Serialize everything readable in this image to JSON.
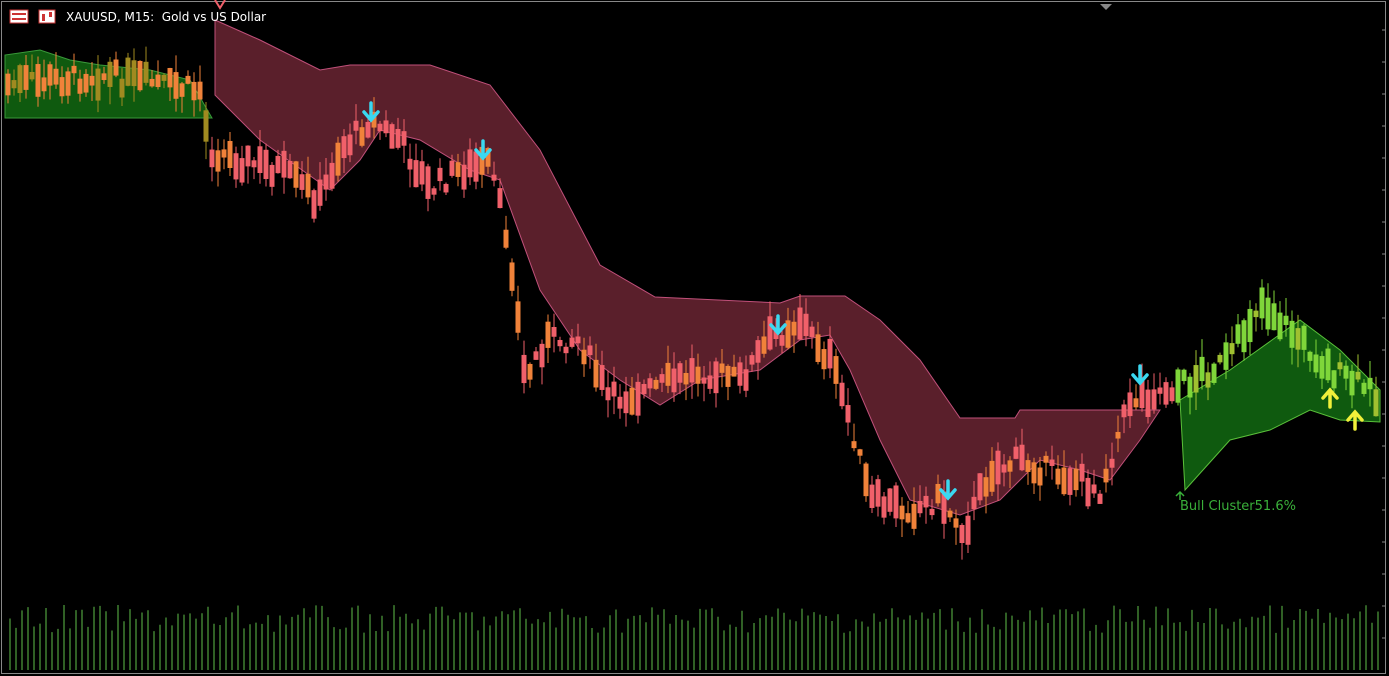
{
  "header": {
    "title": "XAUUSD, M15:  Gold vs US Dollar"
  },
  "annotations": [
    {
      "label": "Bull Cluster51.6%"
    }
  ]
}
